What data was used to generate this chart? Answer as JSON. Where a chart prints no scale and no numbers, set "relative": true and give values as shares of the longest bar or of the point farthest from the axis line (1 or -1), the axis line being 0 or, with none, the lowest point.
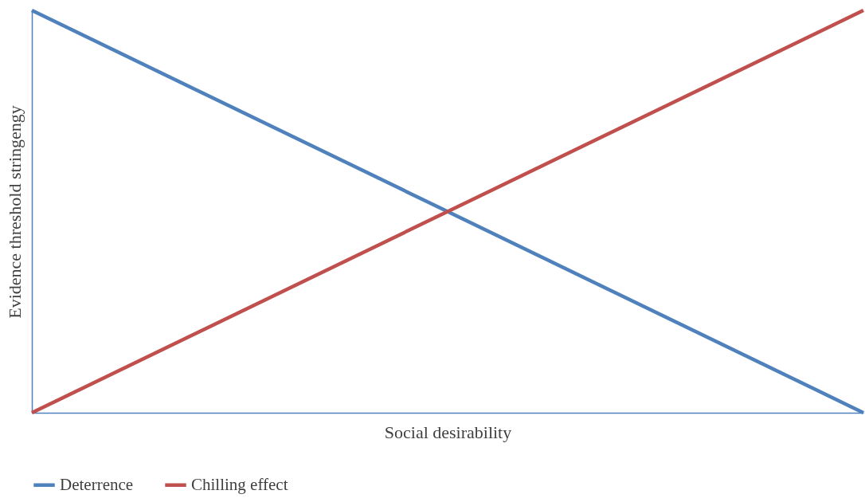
{
  "chart_data": {
    "type": "line",
    "relative": true,
    "xlabel": "Social desirability",
    "ylabel": "Evidence threshold stringengy",
    "categories": [
      null,
      null
    ],
    "series": [
      {
        "name": "Deterrence",
        "color": "#4f81bd",
        "values": [
          1,
          0
        ]
      },
      {
        "name": "Chilling effect",
        "color": "#c0504d",
        "values": [
          0,
          1
        ]
      }
    ],
    "legend": "bottom"
  }
}
